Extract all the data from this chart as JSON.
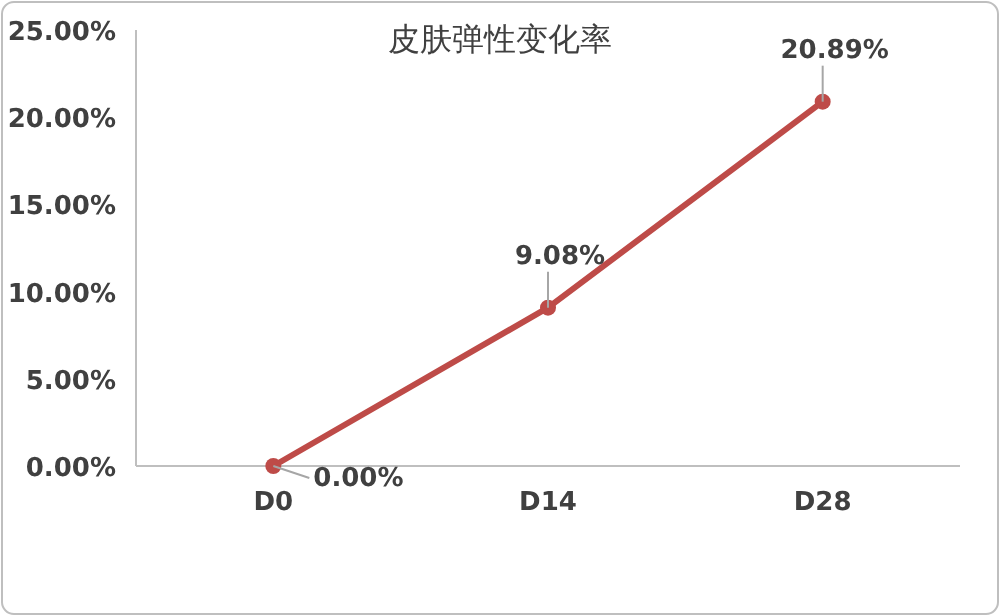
{
  "chart_data": {
    "type": "line",
    "title": "皮肤弹性变化率",
    "categories": [
      "D0",
      "D14",
      "D28"
    ],
    "series": [
      {
        "color": "#be4b48",
        "values": [
          0,
          9.08,
          20.89
        ],
        "value_labels": [
          "0.00%",
          "9.08%",
          "20.89%"
        ]
      }
    ],
    "ylim": [
      0,
      25
    ],
    "yticks": [
      {
        "value": 0,
        "label": "0.00%"
      },
      {
        "value": 5,
        "label": "5.00%"
      },
      {
        "value": 10,
        "label": "10.00%"
      },
      {
        "value": 15,
        "label": "15.00%"
      },
      {
        "value": 20,
        "label": "20.00%"
      },
      {
        "value": 25,
        "label": "25.00%"
      }
    ],
    "marker": "circle",
    "line_style": "solid"
  }
}
